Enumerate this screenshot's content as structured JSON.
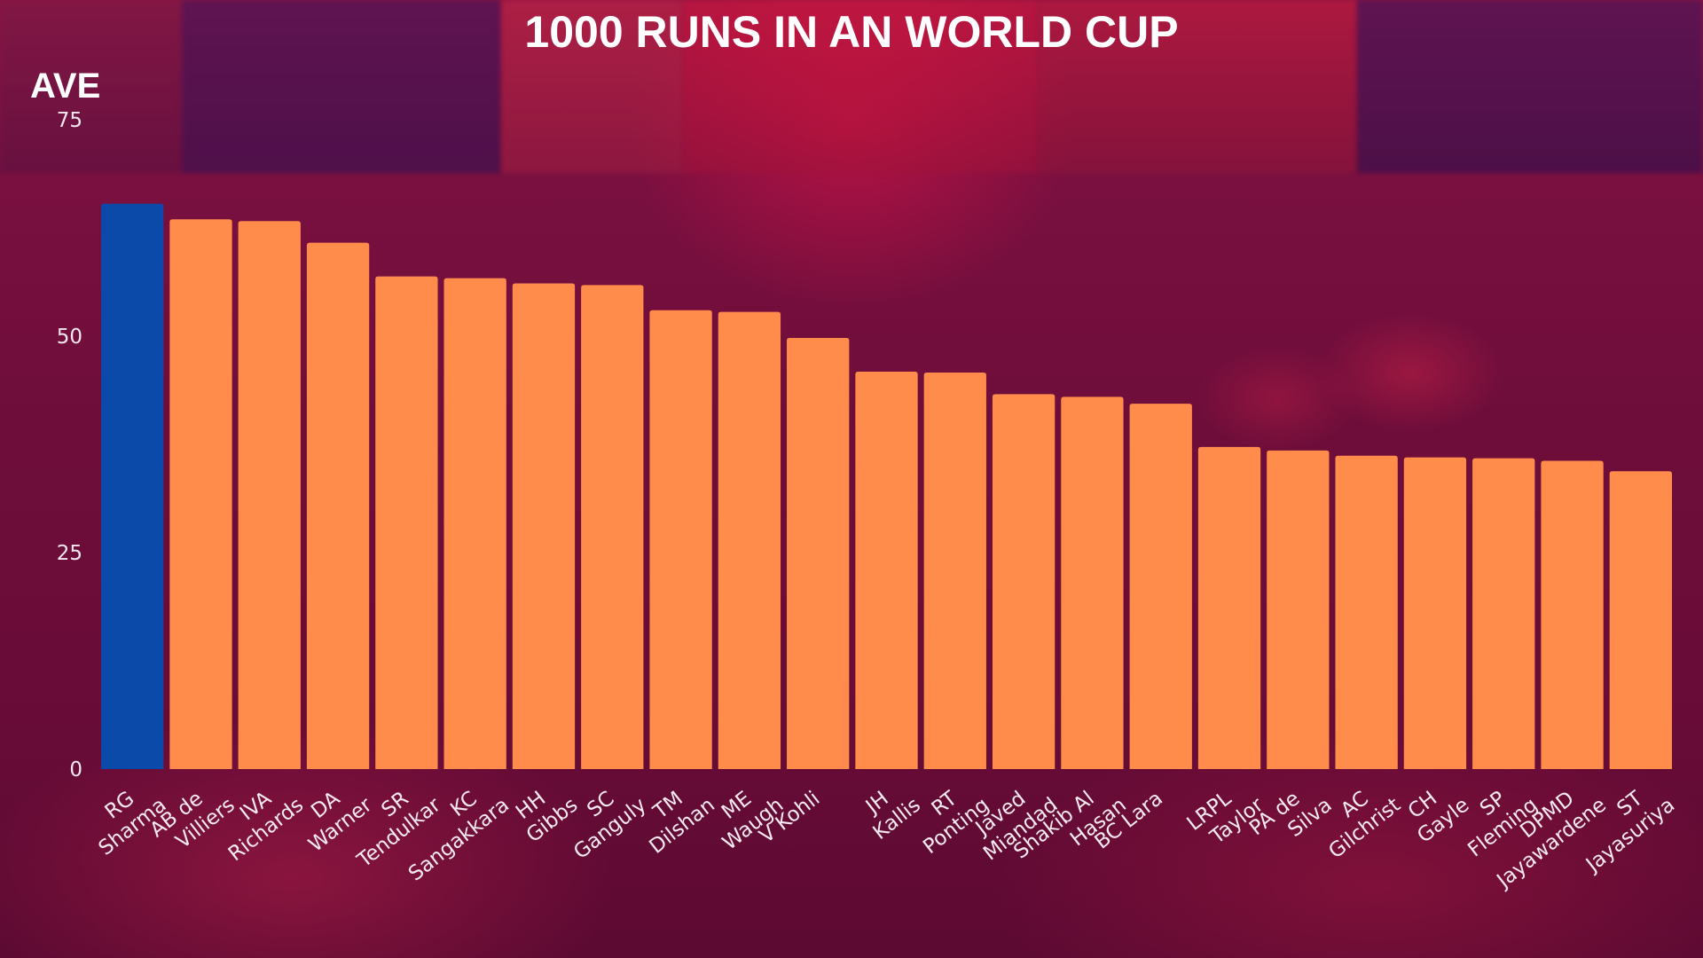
{
  "colors": {
    "bar_default": "#ff8c4b",
    "bar_highlight": "#0b4aa8",
    "text": "#ffffff",
    "background": "#6e0d3a"
  },
  "chart_data": {
    "type": "bar",
    "title": "1000 RUNS IN AN WORLD CUP",
    "xlabel": "",
    "ylabel": "AVE",
    "ylim": [
      0,
      75
    ],
    "yticks": [
      0,
      25,
      50,
      75
    ],
    "grid": false,
    "legend": "none",
    "highlight_index": 0,
    "categories": [
      [
        "RG",
        "Sharma"
      ],
      [
        "AB de",
        "Villiers"
      ],
      [
        "IVA",
        "Richards"
      ],
      [
        "DA",
        "Warner"
      ],
      [
        "SR",
        "Tendulkar"
      ],
      [
        "KC",
        "Sangakkara"
      ],
      [
        "HH",
        "Gibbs"
      ],
      [
        "SC",
        "Ganguly"
      ],
      [
        "TM",
        "Dilshan"
      ],
      [
        "ME",
        "Waugh"
      ],
      [
        "V Kohli"
      ],
      [
        "JH",
        "Kallis"
      ],
      [
        "RT",
        "Ponting"
      ],
      [
        "Javed",
        "Miandad"
      ],
      [
        "Shakib Al",
        "Hasan"
      ],
      [
        "BC Lara"
      ],
      [
        "LRPL",
        "Taylor"
      ],
      [
        "PA de",
        "Silva"
      ],
      [
        "AC",
        "Gilchrist"
      ],
      [
        "CH",
        "Gayle"
      ],
      [
        "SP",
        "Fleming"
      ],
      [
        "DPMD",
        "Jayawardene"
      ],
      [
        "ST",
        "Jayasuriya"
      ]
    ],
    "values": [
      65.3,
      63.5,
      63.3,
      60.8,
      56.9,
      56.7,
      56.1,
      55.9,
      53.0,
      52.8,
      49.8,
      45.9,
      45.8,
      43.3,
      43.0,
      42.2,
      37.2,
      36.8,
      36.2,
      36.0,
      35.9,
      35.6,
      34.4
    ]
  }
}
